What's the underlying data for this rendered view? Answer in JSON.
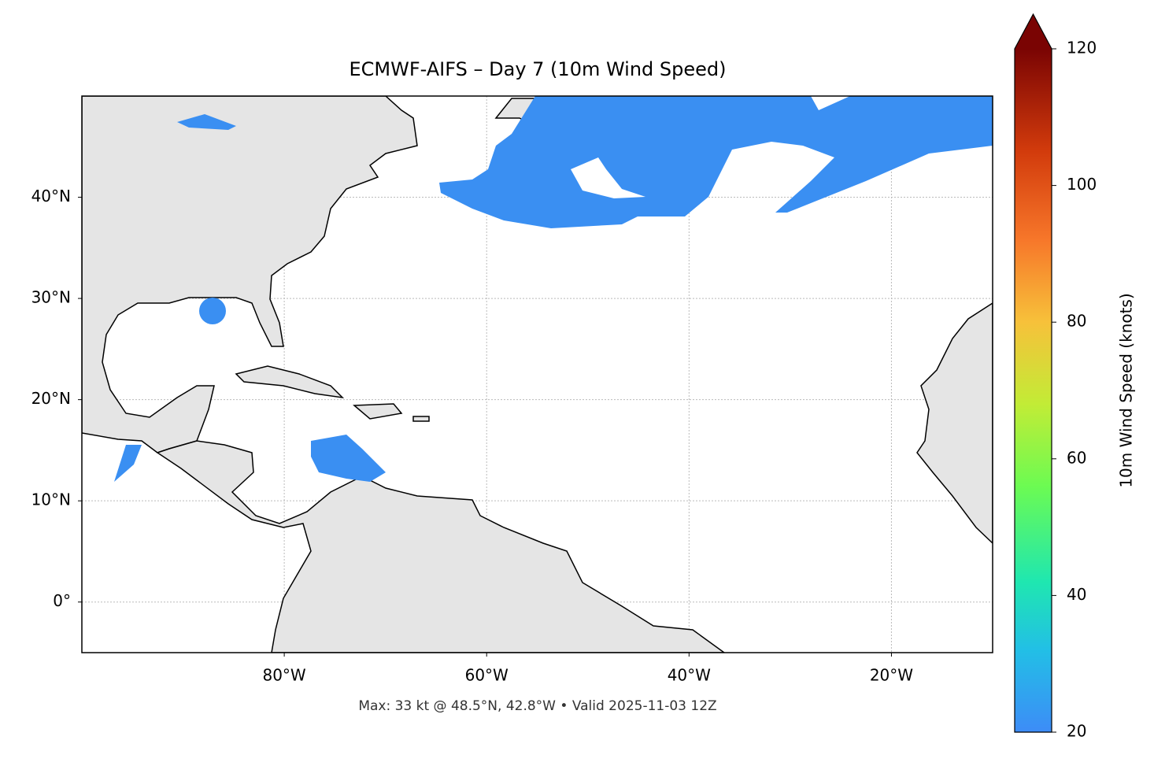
{
  "title": "ECMWF-AIFS – Day 7 (10m Wind Speed)",
  "map": {
    "lon_range": [
      -100,
      -10
    ],
    "lat_range": [
      -5,
      50
    ],
    "lat_ticks": [
      {
        "value": 40,
        "label": "40°N"
      },
      {
        "value": 30,
        "label": "30°N"
      },
      {
        "value": 20,
        "label": "20°N"
      },
      {
        "value": 10,
        "label": "10°N"
      },
      {
        "value": 0,
        "label": "0°"
      }
    ],
    "lon_ticks": [
      {
        "value": -80,
        "label": "80°W"
      },
      {
        "value": -60,
        "label": "60°W"
      },
      {
        "value": -40,
        "label": "40°W"
      },
      {
        "value": -20,
        "label": "20°W"
      }
    ]
  },
  "colorbar": {
    "label": "10m Wind Speed (knots)",
    "range": [
      20,
      120
    ],
    "ticks": [
      20,
      40,
      60,
      80,
      100,
      120
    ]
  },
  "footer": "Max: 33 kt @ 48.5°N, 42.8°W • Valid 2025-11-03 12Z"
}
